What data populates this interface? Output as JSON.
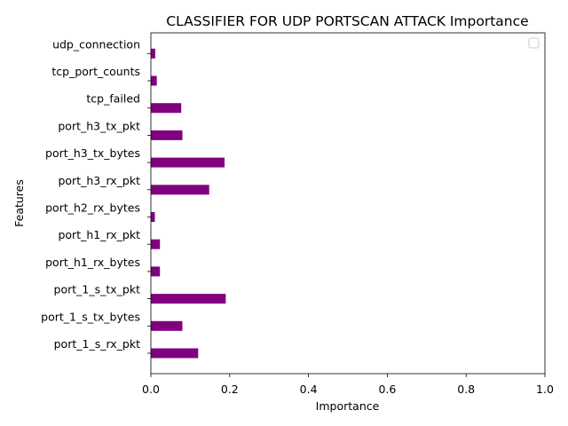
{
  "chart_data": {
    "type": "bar",
    "orientation": "horizontal",
    "title": "CLASSIFIER FOR UDP PORTSCAN ATTACK Importance",
    "xlabel": "Importance",
    "ylabel": "Features",
    "xlim": [
      0,
      1
    ],
    "xticks": [
      "0.0",
      "0.2",
      "0.4",
      "0.6",
      "0.8",
      "1.0"
    ],
    "categories": [
      "port_1_s_rx_pkt",
      "port_1_s_tx_bytes",
      "port_1_s_tx_pkt",
      "port_h1_rx_bytes",
      "port_h1_rx_pkt",
      "port_h2_rx_bytes",
      "port_h3_rx_pkt",
      "port_h3_tx_bytes",
      "port_h3_tx_pkt",
      "tcp_failed",
      "tcp_port_counts",
      "udp_connection"
    ],
    "values": [
      0.12,
      0.08,
      0.19,
      0.023,
      0.023,
      0.01,
      0.148,
      0.187,
      0.08,
      0.077,
      0.015,
      0.011
    ],
    "bar_color": "#800080",
    "grid": false,
    "legend": {
      "position": "top-right",
      "entries": []
    }
  }
}
